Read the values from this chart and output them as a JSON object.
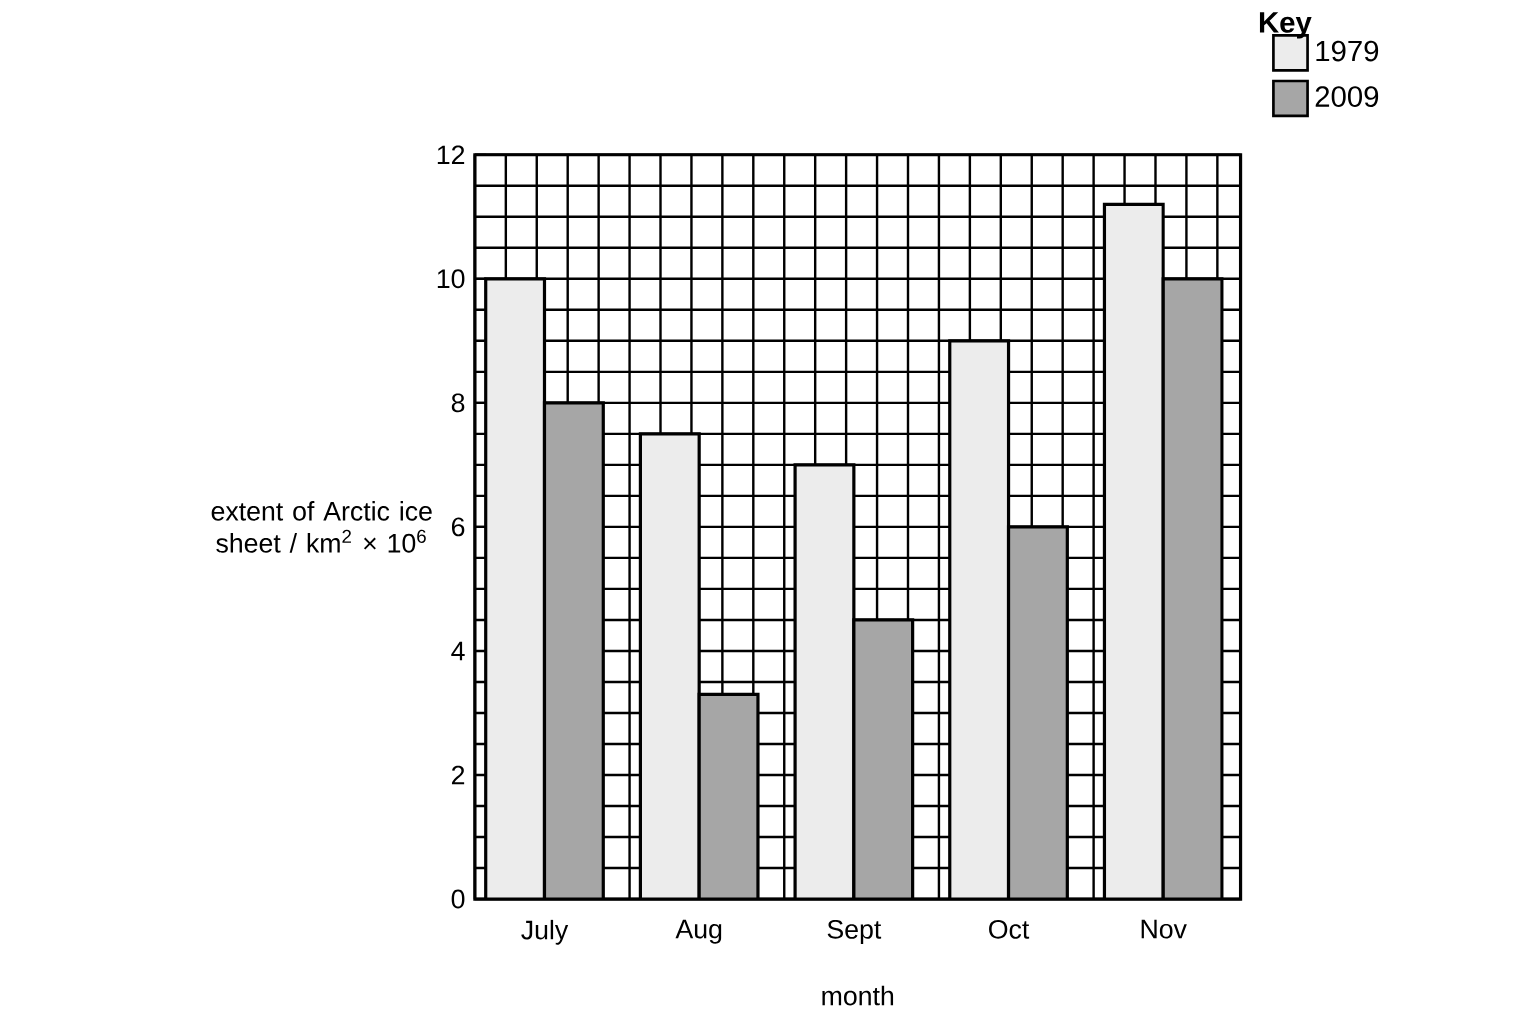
{
  "chart_data": {
    "type": "bar",
    "xlabel": "month",
    "ylabel": "extent of Arctic ice sheet / km$^{2}$ × 10$^{6}$",
    "legend_title": "Key",
    "categories": [
      "July",
      "Aug",
      "Sept",
      "Oct",
      "Nov"
    ],
    "series": [
      {
        "name": "1979",
        "color": "#ececec",
        "values": [
          10,
          7.5,
          7,
          9,
          11.2
        ]
      },
      {
        "name": "2009",
        "color": "#a6a6a6",
        "values": [
          8,
          3.3,
          4.5,
          6,
          10
        ]
      }
    ],
    "ylim": [
      0,
      12
    ],
    "yticks": [
      0,
      2,
      4,
      6,
      8,
      10,
      12
    ],
    "grid": true,
    "legend": "top right"
  }
}
